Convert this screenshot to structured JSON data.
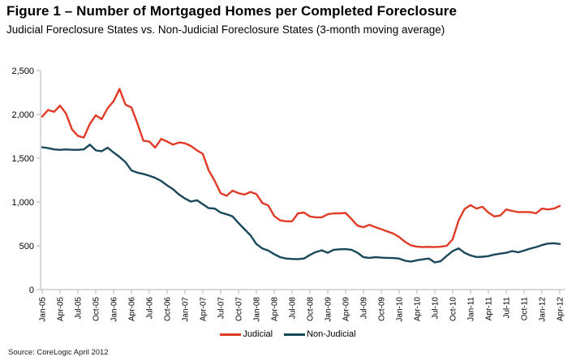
{
  "title": "Figure 1 – Number of Mortgaged Homes per Completed Foreclosure",
  "subtitle": "Judicial Foreclosure States vs. Non-Judicial Foreclosure States (3-month moving average)",
  "source": "Source: CoreLogic April 2012",
  "colors": {
    "judicial": "#E13B28",
    "non_judicial": "#19485A",
    "axis": "#B3B3B6",
    "text": "#000000",
    "background": "#FFFFFF"
  },
  "chart_data": {
    "type": "line",
    "title": "Figure 1 – Number of Mortgaged Homes per Completed Foreclosure",
    "subtitle": "Judicial Foreclosure States vs. Non-Judicial Foreclosure States (3-month moving average)",
    "xlabel": "",
    "ylabel": "",
    "ylim": [
      0,
      2500
    ],
    "grid": false,
    "legend_position": "bottom",
    "y_ticks": [
      0,
      500,
      1000,
      1500,
      2000,
      2500
    ],
    "y_tick_labels": [
      "0",
      "500",
      "1,000",
      "1,500",
      "2,000",
      "2,500"
    ],
    "x_points_per_tick": 3,
    "x_tick_labels": [
      "Jan-05",
      "Apr-05",
      "Jul-05",
      "Oct-05",
      "Jan-06",
      "Apr-06",
      "Jul-06",
      "Oct-06",
      "Jan-07",
      "Apr-07",
      "Jul-07",
      "Oct-07",
      "Jan-08",
      "Apr-08",
      "Jul-08",
      "Oct-08",
      "Jan-09",
      "Apr-09",
      "Jul-09",
      "Oct-09",
      "Jan-10",
      "Apr-10",
      "Jul-10",
      "Oct-10",
      "Jan-11",
      "Apr-11",
      "Jul-11",
      "Oct-11",
      "Jan-12",
      "Apr-12"
    ],
    "series": [
      {
        "name": "Judicial",
        "color": "#E13B28",
        "values": [
          1975,
          2050,
          2030,
          2100,
          2010,
          1830,
          1755,
          1735,
          1890,
          1990,
          1945,
          2070,
          2150,
          2290,
          2110,
          2080,
          1900,
          1700,
          1690,
          1620,
          1720,
          1690,
          1655,
          1680,
          1670,
          1640,
          1590,
          1550,
          1360,
          1240,
          1100,
          1070,
          1130,
          1100,
          1085,
          1115,
          1090,
          990,
          960,
          840,
          790,
          780,
          780,
          870,
          880,
          835,
          825,
          825,
          860,
          870,
          870,
          875,
          805,
          730,
          712,
          740,
          713,
          690,
          665,
          640,
          600,
          545,
          505,
          490,
          485,
          488,
          485,
          490,
          500,
          575,
          790,
          920,
          965,
          925,
          945,
          880,
          835,
          845,
          915,
          898,
          885,
          885,
          885,
          870,
          925,
          915,
          925,
          955
        ]
      },
      {
        "name": "Non-Judicial",
        "color": "#19485A",
        "values": [
          1625,
          1615,
          1600,
          1595,
          1600,
          1595,
          1595,
          1600,
          1655,
          1590,
          1580,
          1620,
          1565,
          1515,
          1455,
          1360,
          1335,
          1320,
          1300,
          1275,
          1240,
          1190,
          1145,
          1085,
          1040,
          1005,
          1020,
          975,
          930,
          925,
          880,
          860,
          835,
          760,
          690,
          620,
          520,
          470,
          445,
          405,
          370,
          355,
          350,
          348,
          355,
          395,
          430,
          448,
          420,
          455,
          460,
          462,
          455,
          420,
          370,
          362,
          370,
          365,
          362,
          360,
          355,
          330,
          320,
          335,
          345,
          355,
          310,
          325,
          385,
          440,
          470,
          420,
          390,
          372,
          375,
          382,
          400,
          410,
          420,
          440,
          426,
          445,
          468,
          485,
          508,
          525,
          530,
          520
        ]
      }
    ]
  },
  "legend": {
    "judicial_label": "Judicial",
    "non_judicial_label": "Non-Judicial"
  }
}
